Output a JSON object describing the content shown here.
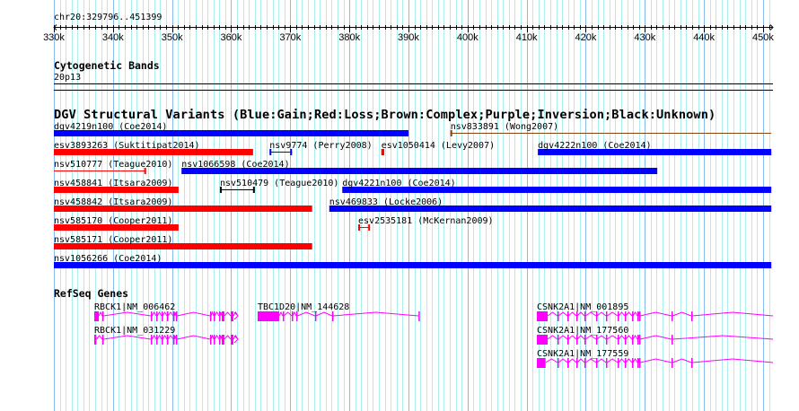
{
  "colors": {
    "gain": "#0000ff",
    "loss": "#ff0000",
    "complex": "#8b4513",
    "inversion": "#800080",
    "unknown": "#000000",
    "gene": "#ff00ff",
    "grid_major": "#88bbee",
    "grid_minor": "#aaeeee"
  },
  "ruler": {
    "position": "chr20:329796..451399",
    "view_start_kb": 329.796,
    "view_end_kb": 451.399,
    "tick_labels": [
      {
        "kb": 330,
        "label": "330k"
      },
      {
        "kb": 340,
        "label": "340k"
      },
      {
        "kb": 350,
        "label": "350k"
      },
      {
        "kb": 360,
        "label": "360k"
      },
      {
        "kb": 370,
        "label": "370k"
      },
      {
        "kb": 380,
        "label": "380k"
      },
      {
        "kb": 390,
        "label": "390k"
      },
      {
        "kb": 400,
        "label": "400k"
      },
      {
        "kb": 410,
        "label": "410k"
      },
      {
        "kb": 420,
        "label": "420k"
      },
      {
        "kb": 430,
        "label": "430k"
      },
      {
        "kb": 440,
        "label": "440k"
      },
      {
        "kb": 450,
        "label": "450k"
      }
    ]
  },
  "cytoband": {
    "title": "Cytogenetic Bands",
    "band": "20p13"
  },
  "dgv": {
    "title": "DGV Structural Variants (Blue:Gain;Red:Loss;Brown:Complex;Purple;Inversion;Black:Unknown)",
    "variants": [
      {
        "row": 0,
        "label": "dgv4219n100 (Coe2014)",
        "type": "gain",
        "style": "thick",
        "start": 329.8,
        "end": 390.0
      },
      {
        "row": 0,
        "label": "nsv833891 (Wong2007)",
        "type": "complex",
        "style": "thin",
        "start": 397.1,
        "end": 451.4
      },
      {
        "row": 1,
        "label": "esv3893263 (Suktitipat2014)",
        "type": "loss",
        "style": "thick",
        "start": 329.8,
        "end": 363.7
      },
      {
        "row": 1,
        "label": "nsv9774 (Perry2008)",
        "type": "gain",
        "style": "thin",
        "start": 366.5,
        "end": 370.3
      },
      {
        "row": 1,
        "label": "esv1050414 (Levy2007)",
        "type": "loss",
        "style": "thick",
        "start": 385.4,
        "end": 385.9
      },
      {
        "row": 1,
        "label": "dgv4222n100 (Coe2014)",
        "type": "gain",
        "style": "thick",
        "start": 411.9,
        "end": 451.4
      },
      {
        "row": 2,
        "label": "nsv510777 (Teague2010)",
        "type": "loss",
        "style": "thin",
        "start": 329.8,
        "end": 345.6
      },
      {
        "row": 2,
        "label": "nsv1066598 (Coe2014)",
        "type": "gain",
        "style": "thick",
        "start": 351.6,
        "end": 432.1
      },
      {
        "row": 3,
        "label": "nsv458841 (Itsara2009)",
        "type": "loss",
        "style": "thick",
        "start": 329.8,
        "end": 351.1
      },
      {
        "row": 3,
        "label": "nsv510479 (Teague2010)",
        "type": "unknown",
        "style": "thin",
        "start": 358.1,
        "end": 364.0
      },
      {
        "row": 3,
        "label": "dgv4221n100 (Coe2014)",
        "type": "gain",
        "style": "thick",
        "start": 378.8,
        "end": 451.4
      },
      {
        "row": 4,
        "label": "nsv458842 (Itsara2009)",
        "type": "loss",
        "style": "thick",
        "start": 329.8,
        "end": 373.7
      },
      {
        "row": 4,
        "label": "nsv469833 (Locke2006)",
        "type": "gain",
        "style": "thick",
        "start": 376.6,
        "end": 451.4
      },
      {
        "row": 5,
        "label": "nsv585170 (Cooper2011)",
        "type": "loss",
        "style": "thick",
        "start": 329.8,
        "end": 351.1
      },
      {
        "row": 5,
        "label": "esv2535181 (McKernan2009)",
        "type": "loss",
        "style": "thin",
        "start": 381.5,
        "end": 383.5
      },
      {
        "row": 6,
        "label": "nsv585171 (Cooper2011)",
        "type": "loss",
        "style": "thick",
        "start": 329.8,
        "end": 373.7
      },
      {
        "row": 7,
        "label": "nsv1056266 (Coe2014)",
        "type": "gain",
        "style": "thick",
        "start": 329.8,
        "end": 451.4
      }
    ]
  },
  "refseq": {
    "title": "RefSeq Genes",
    "genes": [
      {
        "row": 0,
        "label": "RBCK1|NM_006462",
        "start": 336.84,
        "end": 361.14,
        "arrow": true,
        "exons": [
          [
            336.84,
            337.6
          ],
          [
            338.2,
            338.4
          ],
          [
            346.41,
            346.6
          ],
          [
            347.32,
            347.5
          ],
          [
            348.23,
            348.4
          ],
          [
            349.14,
            349.3
          ],
          [
            350.2,
            350.4
          ],
          [
            350.66,
            350.85
          ],
          [
            356.43,
            356.6
          ],
          [
            357.04,
            357.2
          ],
          [
            357.95,
            358.1
          ],
          [
            358.41,
            358.86
          ],
          [
            359.93,
            360.38
          ]
        ]
      },
      {
        "row": 1,
        "label": "RBCK1|NM_031229",
        "start": 336.84,
        "end": 361.14,
        "arrow": true,
        "exons": [
          [
            336.84,
            337.2
          ],
          [
            338.2,
            338.4
          ],
          [
            346.41,
            346.6
          ],
          [
            347.32,
            347.5
          ],
          [
            348.23,
            348.4
          ],
          [
            349.14,
            349.3
          ],
          [
            350.2,
            350.4
          ],
          [
            350.66,
            350.85
          ],
          [
            356.43,
            356.6
          ],
          [
            357.04,
            357.2
          ],
          [
            357.95,
            358.1
          ],
          [
            358.41,
            358.86
          ],
          [
            359.93,
            360.38
          ]
        ]
      },
      {
        "row": 0,
        "label": "TBC1D20|NM_144628",
        "start": 364.48,
        "end": 391.83,
        "arrow": false,
        "exons": [
          [
            364.48,
            368.13
          ],
          [
            368.74,
            368.9
          ],
          [
            370.26,
            370.4
          ],
          [
            371.01,
            371.2
          ],
          [
            374.2,
            374.35
          ],
          [
            377.09,
            377.25
          ],
          [
            391.7,
            391.83
          ]
        ]
      },
      {
        "row": 0,
        "label": "CSNK2A1|NM_001895",
        "start": 411.73,
        "end": 451.68,
        "arrow": false,
        "exons": [
          [
            411.73,
            413.55
          ],
          [
            415.22,
            415.4
          ],
          [
            416.89,
            417.05
          ],
          [
            418.41,
            418.55
          ],
          [
            419.78,
            419.95
          ],
          [
            421.75,
            421.9
          ],
          [
            423.42,
            423.6
          ],
          [
            425.4,
            425.55
          ],
          [
            426.61,
            426.75
          ],
          [
            427.83,
            428.0
          ],
          [
            428.74,
            428.9
          ],
          [
            429.04,
            429.2
          ],
          [
            434.51,
            434.7
          ],
          [
            437.85,
            438.0
          ]
        ]
      },
      {
        "row": 1,
        "label": "CSNK2A1|NM_177560",
        "start": 411.73,
        "end": 451.68,
        "arrow": false,
        "exons": [
          [
            411.73,
            413.55
          ],
          [
            415.22,
            415.4
          ],
          [
            416.89,
            417.05
          ],
          [
            418.41,
            418.55
          ],
          [
            419.78,
            419.95
          ],
          [
            421.75,
            421.9
          ],
          [
            423.42,
            423.6
          ],
          [
            425.4,
            425.55
          ],
          [
            426.61,
            426.75
          ],
          [
            427.83,
            428.0
          ],
          [
            428.74,
            428.9
          ],
          [
            429.04,
            429.2
          ],
          [
            434.51,
            434.7
          ]
        ]
      },
      {
        "row": 2,
        "label": "CSNK2A1|NM_177559",
        "start": 411.73,
        "end": 451.68,
        "arrow": false,
        "exons": [
          [
            411.73,
            413.2
          ],
          [
            415.22,
            415.4
          ],
          [
            416.89,
            417.05
          ],
          [
            418.41,
            418.55
          ],
          [
            419.78,
            419.95
          ],
          [
            421.75,
            421.9
          ],
          [
            423.42,
            423.6
          ],
          [
            425.4,
            425.55
          ],
          [
            426.61,
            426.75
          ],
          [
            427.83,
            428.0
          ],
          [
            428.74,
            428.9
          ],
          [
            429.04,
            429.2
          ],
          [
            434.51,
            434.7
          ],
          [
            437.85,
            438.0
          ]
        ]
      }
    ]
  }
}
